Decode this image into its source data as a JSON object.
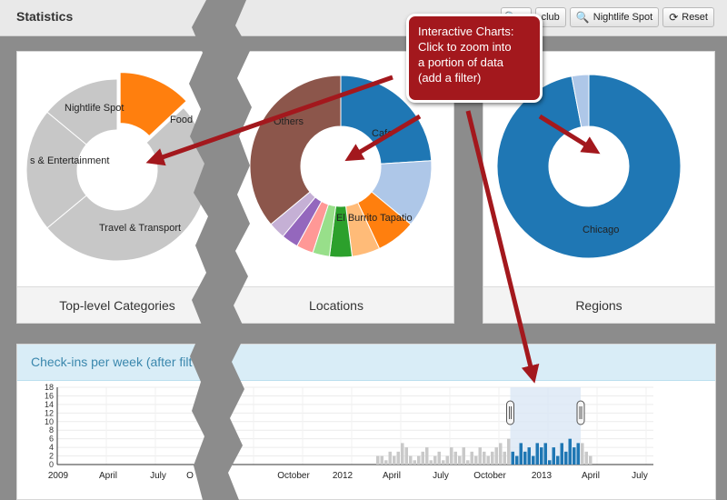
{
  "app": {
    "title": "Statistics"
  },
  "toolbar": {
    "club_label": "club",
    "nightlife_label": "Nightlife Spot",
    "reset_label": "Reset",
    "search_icon": "search-icon",
    "reset_icon": "refresh-icon"
  },
  "panels": {
    "categories": {
      "title": "Top-level Categories"
    },
    "locations": {
      "title": "Locations"
    },
    "regions": {
      "title": "Regions"
    }
  },
  "callout": {
    "lines": [
      "Interactive Charts:",
      "Click to zoom into",
      "a portion of data",
      "(add a filter)"
    ]
  },
  "checkins": {
    "title": "Check-ins per week (after filt"
  },
  "chart_data": [
    {
      "type": "pie",
      "slices": [
        {
          "label": "Food",
          "value": 13,
          "color": "#ff7f0e"
        },
        {
          "label": "Travel & Transport",
          "value": 51,
          "color": "#c7c7c7"
        },
        {
          "label": "s & Entertainment",
          "value": 22,
          "color": "#c7c7c7"
        },
        {
          "label": "Nightlife Spot",
          "value": 14,
          "color": "#c7c7c7"
        }
      ]
    },
    {
      "type": "pie",
      "slices": [
        {
          "label": "Cafe",
          "value": 24,
          "color": "#1f77b4"
        },
        {
          "label": "El Burrito Tapatio",
          "value": 12,
          "color": "#aec7e8"
        },
        {
          "label": "",
          "value": 7,
          "color": "#ff7f0e"
        },
        {
          "label": "",
          "value": 5,
          "color": "#ffbb78"
        },
        {
          "label": "",
          "value": 4,
          "color": "#2ca02c"
        },
        {
          "label": "",
          "value": 3,
          "color": "#98df8a"
        },
        {
          "label": "",
          "value": 3,
          "color": "#ff9896"
        },
        {
          "label": "",
          "value": 3,
          "color": "#9467bd"
        },
        {
          "label": "",
          "value": 3,
          "color": "#c5b0d5"
        },
        {
          "label": "Others",
          "value": 36,
          "color": "#8c564b"
        }
      ]
    },
    {
      "type": "pie",
      "slices": [
        {
          "label": "Chicago",
          "value": 97,
          "color": "#1f77b4"
        },
        {
          "label": "",
          "value": 3,
          "color": "#aec7e8"
        }
      ]
    },
    {
      "type": "bar",
      "ylim": [
        0,
        18
      ],
      "yticks": [
        "0",
        "2",
        "4",
        "6",
        "8",
        "10",
        "12",
        "14",
        "16",
        "18"
      ],
      "xticks_left": [
        "2009",
        "April",
        "July",
        "O"
      ],
      "xticks_right": [
        "October",
        "2012",
        "April",
        "July",
        "October",
        "2013",
        "April",
        "July"
      ],
      "brush": {
        "start": 34.3,
        "end": 40.5
      },
      "values": [
        0,
        0,
        0,
        0,
        0,
        0,
        0,
        0,
        0,
        0,
        0,
        0,
        0,
        0,
        0,
        0,
        0,
        0,
        0,
        0,
        0,
        0,
        0,
        0,
        0,
        0,
        0,
        0,
        0,
        0,
        0,
        0,
        0,
        0,
        0,
        0,
        0,
        0,
        0,
        0,
        0,
        0,
        0,
        0,
        0,
        0,
        0,
        0,
        0,
        0,
        0,
        0,
        0,
        0,
        0,
        0,
        0,
        0,
        0,
        0,
        0,
        0,
        0,
        0,
        0,
        0,
        0,
        0,
        0,
        0,
        0,
        0,
        0,
        0,
        0,
        0,
        0,
        0,
        2,
        2,
        1,
        3,
        2,
        3,
        5,
        4,
        2,
        1,
        2,
        3,
        4,
        1,
        2,
        3,
        1,
        2,
        4,
        3,
        2,
        4,
        1,
        3,
        2,
        4,
        3,
        2,
        3,
        4,
        5,
        3,
        6,
        3,
        2,
        5,
        3,
        4,
        2,
        5,
        4,
        5,
        1,
        4,
        2,
        5,
        3,
        6,
        4,
        5,
        5,
        3,
        2
      ],
      "selected_start": 111,
      "selected_end": 127
    }
  ]
}
